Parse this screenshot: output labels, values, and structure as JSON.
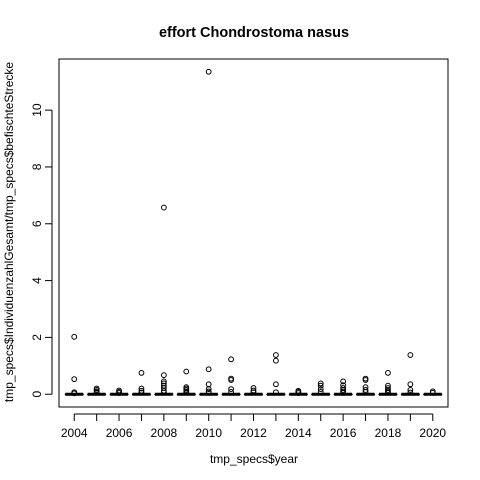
{
  "chart_data": {
    "type": "boxplot",
    "title": "effort Chondrostoma nasus",
    "xlabel": "tmp_specs$year",
    "ylabel": "tmp_specs$IndividuenzahlGesamt/tmp_specs$befischteStrecke",
    "categories": [
      "2004",
      "2005",
      "2006",
      "2007",
      "2008",
      "2009",
      "2010",
      "2011",
      "2012",
      "2013",
      "2014",
      "2015",
      "2016",
      "2017",
      "2018",
      "2019",
      "2020"
    ],
    "x_tick_labels": [
      "2004",
      "2006",
      "2008",
      "2010",
      "2012",
      "2014",
      "2016",
      "2018",
      "2020"
    ],
    "y_ticks": [
      0,
      2,
      4,
      6,
      8,
      10
    ],
    "ylim": [
      -0.45,
      11.8
    ],
    "boxes": [
      {
        "year": "2004",
        "q1": 0,
        "median": 0,
        "q3": 0,
        "whisker_low": 0,
        "whisker_high": 0,
        "outliers": [
          2.02,
          0.53,
          0.07,
          0.03
        ]
      },
      {
        "year": "2005",
        "q1": 0,
        "median": 0,
        "q3": 0,
        "whisker_low": 0,
        "whisker_high": 0,
        "outliers": [
          0.2,
          0.15,
          0.1,
          0.06
        ]
      },
      {
        "year": "2006",
        "q1": 0,
        "median": 0,
        "q3": 0,
        "whisker_low": 0,
        "whisker_high": 0,
        "outliers": [
          0.13,
          0.08,
          0.04
        ]
      },
      {
        "year": "2007",
        "q1": 0,
        "median": 0,
        "q3": 0,
        "whisker_low": 0,
        "whisker_high": 0,
        "outliers": [
          0.75,
          0.2,
          0.12,
          0.06
        ]
      },
      {
        "year": "2008",
        "q1": 0,
        "median": 0,
        "q3": 0,
        "whisker_low": 0,
        "whisker_high": 0,
        "outliers": [
          6.57,
          0.67,
          0.45,
          0.38,
          0.3,
          0.22,
          0.12,
          0.06
        ]
      },
      {
        "year": "2009",
        "q1": 0,
        "median": 0,
        "q3": 0,
        "whisker_low": 0,
        "whisker_high": 0,
        "outliers": [
          0.8,
          0.25,
          0.2,
          0.15,
          0.1,
          0.06
        ]
      },
      {
        "year": "2010",
        "q1": 0,
        "median": 0,
        "q3": 0,
        "whisker_low": 0,
        "whisker_high": 0,
        "outliers": [
          11.35,
          0.88,
          0.35,
          0.18,
          0.1,
          0.05
        ]
      },
      {
        "year": "2011",
        "q1": 0,
        "median": 0,
        "q3": 0,
        "whisker_low": 0,
        "whisker_high": 0,
        "outliers": [
          1.23,
          0.55,
          0.5,
          0.18,
          0.08
        ]
      },
      {
        "year": "2012",
        "q1": 0,
        "median": 0,
        "q3": 0,
        "whisker_low": 0,
        "whisker_high": 0,
        "outliers": [
          0.22,
          0.13,
          0.07
        ]
      },
      {
        "year": "2013",
        "q1": 0,
        "median": 0,
        "q3": 0,
        "whisker_low": 0,
        "whisker_high": 0,
        "outliers": [
          1.38,
          1.18,
          0.35,
          0.07
        ]
      },
      {
        "year": "2014",
        "q1": 0,
        "median": 0,
        "q3": 0,
        "whisker_low": 0,
        "whisker_high": 0,
        "outliers": [
          0.12,
          0.08,
          0.04
        ]
      },
      {
        "year": "2015",
        "q1": 0,
        "median": 0,
        "q3": 0,
        "whisker_low": 0,
        "whisker_high": 0,
        "outliers": [
          0.38,
          0.3,
          0.18,
          0.08
        ]
      },
      {
        "year": "2016",
        "q1": 0,
        "median": 0,
        "q3": 0,
        "whisker_low": 0,
        "whisker_high": 0,
        "outliers": [
          0.45,
          0.32,
          0.22,
          0.15,
          0.1,
          0.05
        ]
      },
      {
        "year": "2017",
        "q1": 0,
        "median": 0,
        "q3": 0,
        "whisker_low": 0,
        "whisker_high": 0,
        "outliers": [
          0.55,
          0.5,
          0.25,
          0.15,
          0.08
        ]
      },
      {
        "year": "2018",
        "q1": 0,
        "median": 0,
        "q3": 0,
        "whisker_low": 0,
        "whisker_high": 0,
        "outliers": [
          0.75,
          0.3,
          0.22,
          0.15,
          0.1,
          0.05
        ]
      },
      {
        "year": "2019",
        "q1": 0,
        "median": 0,
        "q3": 0,
        "whisker_low": 0,
        "whisker_high": 0,
        "outliers": [
          1.38,
          0.35,
          0.15,
          0.06
        ]
      },
      {
        "year": "2020",
        "q1": 0,
        "median": 0,
        "q3": 0,
        "whisker_low": 0,
        "whisker_high": 0,
        "outliers": [
          0.1,
          0.05
        ]
      }
    ]
  }
}
